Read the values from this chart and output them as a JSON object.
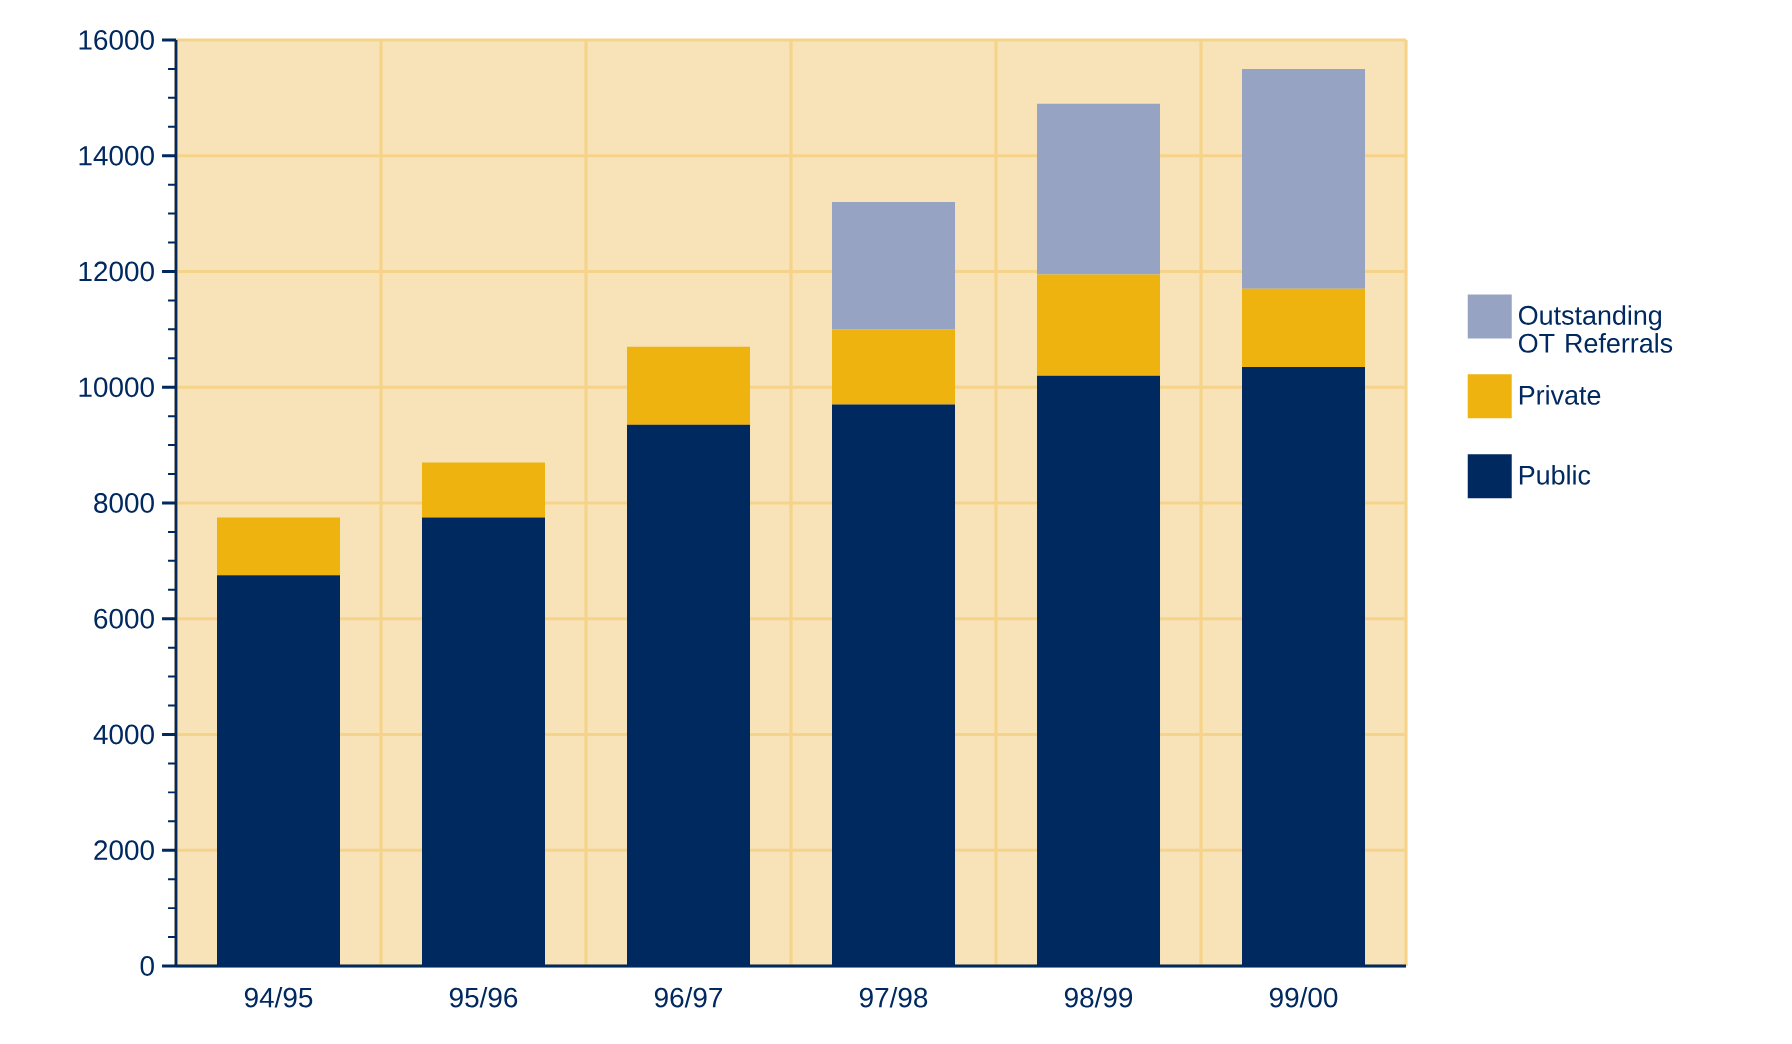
{
  "chart_data": {
    "type": "bar",
    "stacked": true,
    "categories": [
      "94/95",
      "95/96",
      "96/97",
      "97/98",
      "98/99",
      "99/00"
    ],
    "series": [
      {
        "name": "Public",
        "color": "#002960",
        "values": [
          6750,
          7750,
          9350,
          9700,
          10200,
          10350
        ]
      },
      {
        "name": "Private",
        "color": "#eeb30e",
        "values": [
          1000,
          950,
          1350,
          1300,
          1750,
          1350
        ]
      },
      {
        "name": "Outstanding OT Referrals",
        "color": "#97a3c2",
        "values": [
          0,
          0,
          0,
          2200,
          2950,
          3800
        ]
      }
    ],
    "ylim": [
      0,
      16000
    ],
    "yticks": [
      0,
      2000,
      4000,
      6000,
      8000,
      10000,
      12000,
      14000,
      16000
    ],
    "grid": true,
    "legend": "right"
  }
}
